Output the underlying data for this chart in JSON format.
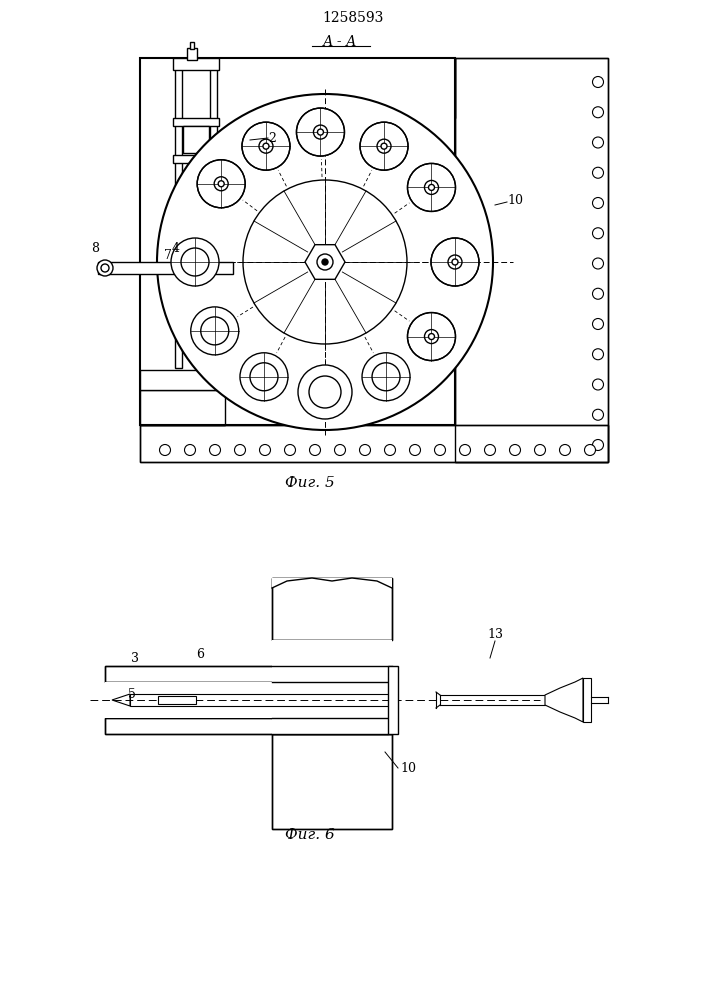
{
  "patent_number": "1258593",
  "fig5_label": "А - А",
  "fig5_caption": "Фиг. 5",
  "fig6_caption": "Фиг. 6",
  "bg_color": "#ffffff",
  "line_color": "#000000"
}
